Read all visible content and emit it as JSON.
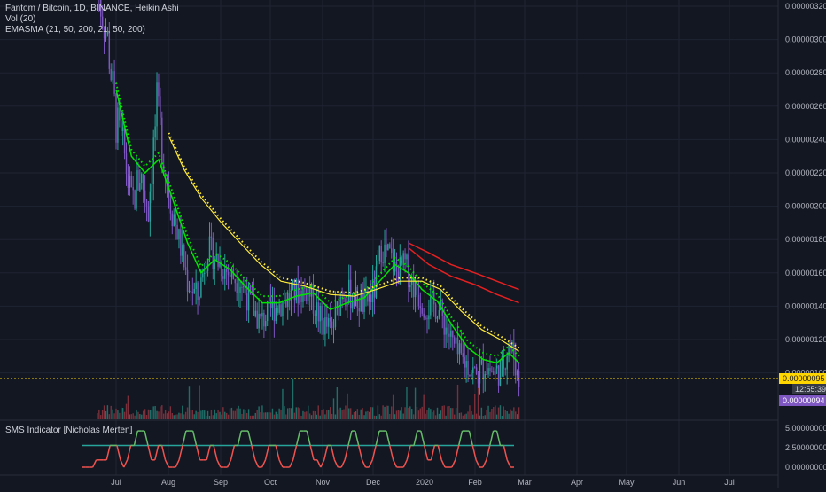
{
  "header": {
    "title": "Fantom / Bitcoin, 1D, BINANCE, Heikin Ashi",
    "vol_label": "Vol (20)",
    "emasma_label": "EMASMA (21, 50, 200, 21, 50, 200)"
  },
  "sms_panel": {
    "label": "SMS Indicator [Nicholas Merten]",
    "y_ticks": [
      "5.00000000",
      "2.50000000",
      "0.00000000"
    ]
  },
  "price_axis": {
    "ticks": [
      "0.00000320",
      "0.00000300",
      "0.00000280",
      "0.00000260",
      "0.00000240",
      "0.00000220",
      "0.00000200",
      "0.00000180",
      "0.00000160",
      "0.00000140",
      "0.00000120",
      "0.00000100"
    ],
    "current_price": "0.00000095",
    "countdown": "12:55:39",
    "last_close": "0.00000094"
  },
  "time_axis": {
    "ticks": [
      "Jul",
      "Aug",
      "Sep",
      "Oct",
      "Nov",
      "Dec",
      "2020",
      "Feb",
      "Mar",
      "Apr",
      "May",
      "Jun",
      "Jul"
    ]
  },
  "colors": {
    "background": "#131722",
    "grid": "#1f2433",
    "up": "#26a69a",
    "down": "#7e57c2",
    "ema21": "#00e600",
    "ema50": "#ffeb3b",
    "ema200": "#e62020",
    "price_line": "#ffd600",
    "sms_green": "#66bb6a",
    "sms_red": "#ef5350",
    "sms_level": "#26a69a"
  },
  "chart_data": {
    "type": "line",
    "y_range": [
      9e-07,
      3.3e-06
    ],
    "price_path": [
      {
        "x": "2019-06-20",
        "y": 3.3e-06
      },
      {
        "x": "2019-06-26",
        "y": 3e-06
      },
      {
        "x": "2019-07-01",
        "y": 2.5e-06
      },
      {
        "x": "2019-07-06",
        "y": 2.3e-06
      },
      {
        "x": "2019-07-10",
        "y": 2e-06
      },
      {
        "x": "2019-07-15",
        "y": 2.2e-06
      },
      {
        "x": "2019-07-20",
        "y": 2e-06
      },
      {
        "x": "2019-07-25",
        "y": 2.6e-06
      },
      {
        "x": "2019-07-31",
        "y": 2.15e-06
      },
      {
        "x": "2019-08-05",
        "y": 1.9e-06
      },
      {
        "x": "2019-08-12",
        "y": 1.55e-06
      },
      {
        "x": "2019-08-18",
        "y": 1.45e-06
      },
      {
        "x": "2019-08-24",
        "y": 1.75e-06
      },
      {
        "x": "2019-08-29",
        "y": 1.68e-06
      },
      {
        "x": "2019-09-05",
        "y": 1.6e-06
      },
      {
        "x": "2019-09-12",
        "y": 1.55e-06
      },
      {
        "x": "2019-09-18",
        "y": 1.42e-06
      },
      {
        "x": "2019-09-24",
        "y": 1.3e-06
      },
      {
        "x": "2019-09-30",
        "y": 1.38e-06
      },
      {
        "x": "2019-10-06",
        "y": 1.42e-06
      },
      {
        "x": "2019-10-14",
        "y": 1.48e-06
      },
      {
        "x": "2019-10-22",
        "y": 1.5e-06
      },
      {
        "x": "2019-10-30",
        "y": 1.3e-06
      },
      {
        "x": "2019-11-05",
        "y": 1.25e-06
      },
      {
        "x": "2019-11-11",
        "y": 1.5e-06
      },
      {
        "x": "2019-11-18",
        "y": 1.45e-06
      },
      {
        "x": "2019-11-24",
        "y": 1.4e-06
      },
      {
        "x": "2019-11-30",
        "y": 1.5e-06
      },
      {
        "x": "2019-12-04",
        "y": 1.75e-06
      },
      {
        "x": "2019-12-09",
        "y": 1.7e-06
      },
      {
        "x": "2019-12-13",
        "y": 1.6e-06
      },
      {
        "x": "2019-12-18",
        "y": 1.65e-06
      },
      {
        "x": "2019-12-24",
        "y": 1.5e-06
      },
      {
        "x": "2019-12-30",
        "y": 1.4e-06
      },
      {
        "x": "2020-01-06",
        "y": 1.4e-06
      },
      {
        "x": "2020-01-12",
        "y": 1.25e-06
      },
      {
        "x": "2020-01-18",
        "y": 1.1e-06
      },
      {
        "x": "2020-01-24",
        "y": 1.05e-06
      },
      {
        "x": "2020-01-29",
        "y": 9.8e-07
      },
      {
        "x": "2020-02-03",
        "y": 1.05e-06
      },
      {
        "x": "2020-02-08",
        "y": 1e-06
      },
      {
        "x": "2020-02-13",
        "y": 1.02e-06
      },
      {
        "x": "2020-02-17",
        "y": 1.18e-06
      },
      {
        "x": "2020-02-20",
        "y": 1.1e-06
      },
      {
        "x": "2020-02-23",
        "y": 9.4e-07
      }
    ],
    "ema_21": [
      {
        "x": "2019-07-01",
        "y": 2.7e-06
      },
      {
        "x": "2019-07-10",
        "y": 2.3e-06
      },
      {
        "x": "2019-07-18",
        "y": 2.2e-06
      },
      {
        "x": "2019-07-26",
        "y": 2.28e-06
      },
      {
        "x": "2019-08-03",
        "y": 2.05e-06
      },
      {
        "x": "2019-08-12",
        "y": 1.78e-06
      },
      {
        "x": "2019-08-20",
        "y": 1.6e-06
      },
      {
        "x": "2019-08-28",
        "y": 1.68e-06
      },
      {
        "x": "2019-09-06",
        "y": 1.62e-06
      },
      {
        "x": "2019-09-15",
        "y": 1.52e-06
      },
      {
        "x": "2019-09-25",
        "y": 1.42e-06
      },
      {
        "x": "2019-10-05",
        "y": 1.42e-06
      },
      {
        "x": "2019-10-15",
        "y": 1.46e-06
      },
      {
        "x": "2019-10-25",
        "y": 1.48e-06
      },
      {
        "x": "2019-11-04",
        "y": 1.38e-06
      },
      {
        "x": "2019-11-14",
        "y": 1.42e-06
      },
      {
        "x": "2019-11-24",
        "y": 1.45e-06
      },
      {
        "x": "2019-12-03",
        "y": 1.55e-06
      },
      {
        "x": "2019-12-12",
        "y": 1.65e-06
      },
      {
        "x": "2019-12-20",
        "y": 1.6e-06
      },
      {
        "x": "2019-12-28",
        "y": 1.5e-06
      },
      {
        "x": "2020-01-06",
        "y": 1.43e-06
      },
      {
        "x": "2020-01-15",
        "y": 1.28e-06
      },
      {
        "x": "2020-01-24",
        "y": 1.15e-06
      },
      {
        "x": "2020-02-02",
        "y": 1.08e-06
      },
      {
        "x": "2020-02-10",
        "y": 1.06e-06
      },
      {
        "x": "2020-02-17",
        "y": 1.12e-06
      },
      {
        "x": "2020-02-23",
        "y": 1.06e-06
      }
    ],
    "ema_50": [
      {
        "x": "2019-08-01",
        "y": 2.42e-06
      },
      {
        "x": "2019-08-10",
        "y": 2.22e-06
      },
      {
        "x": "2019-08-20",
        "y": 2.05e-06
      },
      {
        "x": "2019-09-01",
        "y": 1.9e-06
      },
      {
        "x": "2019-09-12",
        "y": 1.78e-06
      },
      {
        "x": "2019-09-24",
        "y": 1.65e-06
      },
      {
        "x": "2019-10-06",
        "y": 1.55e-06
      },
      {
        "x": "2019-10-20",
        "y": 1.52e-06
      },
      {
        "x": "2019-11-04",
        "y": 1.47e-06
      },
      {
        "x": "2019-11-18",
        "y": 1.46e-06
      },
      {
        "x": "2019-12-01",
        "y": 1.5e-06
      },
      {
        "x": "2019-12-15",
        "y": 1.55e-06
      },
      {
        "x": "2019-12-28",
        "y": 1.55e-06
      },
      {
        "x": "2020-01-08",
        "y": 1.5e-06
      },
      {
        "x": "2020-01-20",
        "y": 1.37e-06
      },
      {
        "x": "2020-02-01",
        "y": 1.26e-06
      },
      {
        "x": "2020-02-12",
        "y": 1.2e-06
      },
      {
        "x": "2020-02-23",
        "y": 1.13e-06
      }
    ],
    "ema_200": [
      {
        "x": "2019-12-20",
        "y": 1.78e-06
      },
      {
        "x": "2020-01-01",
        "y": 1.72e-06
      },
      {
        "x": "2020-01-14",
        "y": 1.65e-06
      },
      {
        "x": "2020-01-28",
        "y": 1.6e-06
      },
      {
        "x": "2020-02-10",
        "y": 1.55e-06
      },
      {
        "x": "2020-02-23",
        "y": 1.5e-06
      }
    ],
    "sma_200": [
      {
        "x": "2019-12-20",
        "y": 1.75e-06
      },
      {
        "x": "2020-01-01",
        "y": 1.65e-06
      },
      {
        "x": "2020-01-14",
        "y": 1.58e-06
      },
      {
        "x": "2020-01-28",
        "y": 1.53e-06
      },
      {
        "x": "2020-02-10",
        "y": 1.47e-06
      },
      {
        "x": "2020-02-23",
        "y": 1.42e-06
      }
    ],
    "sms_values": [
      0,
      0,
      0,
      0,
      1,
      1,
      1,
      1,
      3,
      3,
      3,
      1,
      0,
      1,
      3,
      3,
      5,
      5,
      5,
      3,
      1,
      1,
      3,
      3,
      1,
      0,
      0,
      0,
      1,
      3,
      5,
      5,
      5,
      3,
      1,
      1,
      1,
      3,
      3,
      1,
      0,
      0,
      0,
      1,
      3,
      3,
      5,
      5,
      5,
      3,
      1,
      0,
      0,
      1,
      3,
      3,
      3,
      1,
      0,
      0,
      0,
      1,
      3,
      5,
      5,
      5,
      3,
      1,
      1,
      0,
      1,
      3,
      3,
      1,
      0,
      0,
      1,
      3,
      5,
      5,
      3,
      1,
      0,
      0,
      1,
      3,
      5,
      5,
      5,
      3,
      1,
      0,
      0,
      0,
      1,
      3,
      3,
      5,
      5,
      3,
      1,
      1,
      3,
      3,
      1,
      0,
      0,
      0,
      1,
      3,
      5,
      5,
      5,
      3,
      1,
      0,
      0,
      1,
      3,
      5,
      5,
      3,
      3,
      1,
      0,
      0
    ],
    "sms_ylim": [
      0,
      5.5
    ]
  }
}
